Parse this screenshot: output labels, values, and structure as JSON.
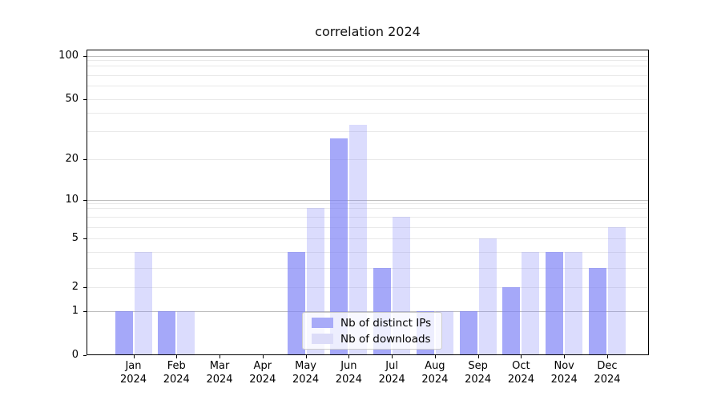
{
  "title": "correlation 2024",
  "legend": {
    "items": [
      {
        "label": "Nb of distinct IPs",
        "series": "ips"
      },
      {
        "label": "Nb of downloads",
        "series": "downloads"
      }
    ]
  },
  "colors": {
    "ips_fill": "rgba(123,127,246,0.68)",
    "downloads_fill": "rgba(123,127,246,0.27)",
    "ips_solid": "#a8abf8",
    "downloads_solid": "#dcdcf8",
    "grid_major": "#bdbdbd",
    "grid_minor": "#e9e9e9",
    "axis_color": "#000000",
    "title_color": "#111111"
  },
  "y_axis": {
    "tick_labels": [
      100,
      50,
      20,
      10,
      5,
      2,
      1,
      0
    ],
    "major_gridlines": [
      1,
      10,
      100
    ],
    "minor_gridlines": [
      2,
      3,
      4,
      5,
      6,
      7,
      8,
      9,
      20,
      30,
      40,
      50,
      60,
      70,
      80,
      90
    ]
  },
  "chart_data": {
    "type": "bar",
    "title": "correlation 2024",
    "categories": [
      "Jan 2024",
      "Feb 2024",
      "Mar 2024",
      "Apr 2024",
      "May 2024",
      "Jun 2024",
      "Jul 2024",
      "Aug 2024",
      "Sep 2024",
      "Oct 2024",
      "Nov 2024",
      "Dec 2024"
    ],
    "series": [
      {
        "name": "Nb of distinct IPs",
        "values": [
          1,
          1,
          0,
          0,
          4,
          27,
          3,
          1,
          1,
          2,
          4,
          3
        ]
      },
      {
        "name": "Nb of downloads",
        "values": [
          4,
          1,
          0,
          0,
          8,
          33,
          7,
          1,
          5,
          4,
          4,
          6
        ]
      }
    ],
    "xlabel": "",
    "ylabel": "",
    "yscale": "symlog-like",
    "y_ticks": [
      0,
      1,
      2,
      5,
      10,
      20,
      50,
      100
    ],
    "ylim": [
      0,
      115
    ],
    "grid": true,
    "legend_position": "lower center"
  }
}
